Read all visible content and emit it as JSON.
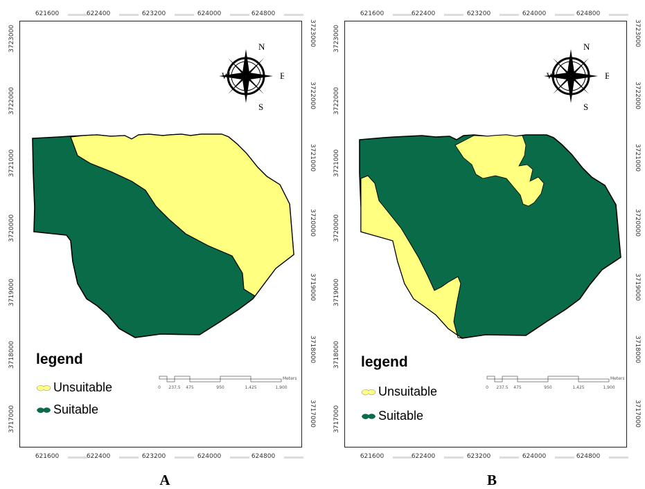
{
  "figure": {
    "panels": [
      {
        "label": "A",
        "legend": {
          "title": "legend",
          "items": [
            {
              "label": "Unsuitable",
              "color": "#ffff80"
            },
            {
              "label": "Suitable",
              "color": "#0a6b48"
            }
          ]
        },
        "x_ticks": [
          "621600",
          "622400",
          "623200",
          "624000",
          "624800"
        ],
        "y_ticks": [
          "3723000",
          "3722000",
          "3721000",
          "3720000",
          "3719000",
          "3718000",
          "3717000"
        ],
        "compass": {
          "n": "N",
          "s": "S",
          "e": "E",
          "w": "W"
        },
        "scale": {
          "unit": "Meters",
          "labels": [
            "0",
            "237.5",
            "475",
            "950",
            "1,425",
            "1,900"
          ]
        }
      },
      {
        "label": "B",
        "legend": {
          "title": "legend",
          "items": [
            {
              "label": "Unsuitable",
              "color": "#ffff80"
            },
            {
              "label": "Suitable",
              "color": "#0a6b48"
            }
          ]
        },
        "x_ticks": [
          "621600",
          "622400",
          "623200",
          "624000",
          "624800"
        ],
        "y_ticks": [
          "3723000",
          "3722000",
          "3721000",
          "3720000",
          "3719000",
          "3718000",
          "3717000"
        ],
        "compass": {
          "n": "N",
          "s": "S",
          "e": "E",
          "w": "W"
        },
        "scale": {
          "unit": "Meters",
          "labels": [
            "0",
            "237.5",
            "475",
            "950",
            "1,425",
            "1,900"
          ]
        }
      }
    ],
    "colors": {
      "unsuitable": "#ffff80",
      "suitable": "#0a6b48",
      "outline": "#000000"
    }
  }
}
